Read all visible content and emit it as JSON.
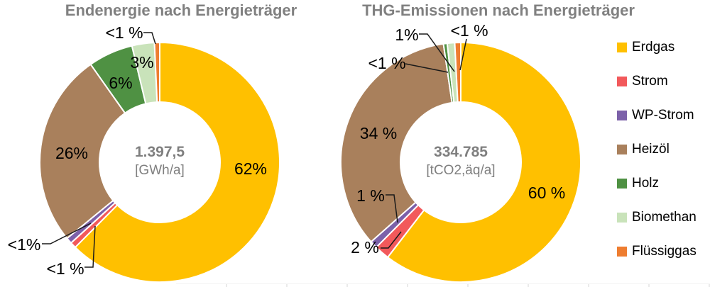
{
  "colors": {
    "erdgas": "#FFC000",
    "strom": "#F2595B",
    "wp_strom": "#7C61A9",
    "heizoel": "#A9805C",
    "holz": "#4F9143",
    "biomethan": "#C9E3BA",
    "fluessiggas": "#EE7D30",
    "title_gray": "#808080",
    "center_gray": "#7F7F7F",
    "label_black": "#000000"
  },
  "legend": {
    "items": [
      {
        "id": "erdgas",
        "label": "Erdgas"
      },
      {
        "id": "strom",
        "label": "Strom"
      },
      {
        "id": "wp_strom",
        "label": "WP-Strom"
      },
      {
        "id": "heizoel",
        "label": "Heizöl"
      },
      {
        "id": "holz",
        "label": "Holz"
      },
      {
        "id": "biomethan",
        "label": "Biomethan"
      },
      {
        "id": "fluessiggas",
        "label": "Flüssiggas"
      }
    ]
  },
  "chart_data": [
    {
      "type": "pie",
      "subtype": "donut",
      "title": "Endenergie nach Energieträger",
      "center_value": "1.397,5",
      "center_unit": "[GWh/a]",
      "start_angle_deg": 0,
      "direction": "clockwise",
      "slices": [
        {
          "id": "erdgas",
          "name": "Erdgas",
          "value": 62,
          "label": "62%"
        },
        {
          "id": "strom",
          "name": "Strom",
          "value": 0.8,
          "label": "<1 %"
        },
        {
          "id": "wp_strom",
          "name": "WP-Strom",
          "value": 0.8,
          "label": "<1%"
        },
        {
          "id": "heizoel",
          "name": "Heizöl",
          "value": 26,
          "label": "26%"
        },
        {
          "id": "holz",
          "name": "Holz",
          "value": 6,
          "label": "6%"
        },
        {
          "id": "biomethan",
          "name": "Biomethan",
          "value": 3,
          "label": "3%"
        },
        {
          "id": "fluessiggas",
          "name": "Flüssiggas",
          "value": 0.7,
          "label": "<1 %"
        }
      ]
    },
    {
      "type": "pie",
      "subtype": "donut",
      "title": "THG-Emissionen nach Energieträger",
      "center_value": "334.785",
      "center_unit": "[tCO2,äq/a]",
      "start_angle_deg": 0,
      "direction": "clockwise",
      "slices": [
        {
          "id": "erdgas",
          "name": "Erdgas",
          "value": 60,
          "label": "60 %"
        },
        {
          "id": "strom",
          "name": "Strom",
          "value": 2,
          "label": "2 %"
        },
        {
          "id": "wp_strom",
          "name": "WP-Strom",
          "value": 1,
          "label": "1 %"
        },
        {
          "id": "heizoel",
          "name": "Heizöl",
          "value": 34,
          "label": "34 %"
        },
        {
          "id": "holz",
          "name": "Holz",
          "value": 0.5,
          "label": "<1 %"
        },
        {
          "id": "biomethan",
          "name": "Biomethan",
          "value": 1,
          "label": "1%"
        },
        {
          "id": "fluessiggas",
          "name": "Flüssiggas",
          "value": 0.8,
          "label": "<1 %"
        }
      ]
    }
  ]
}
